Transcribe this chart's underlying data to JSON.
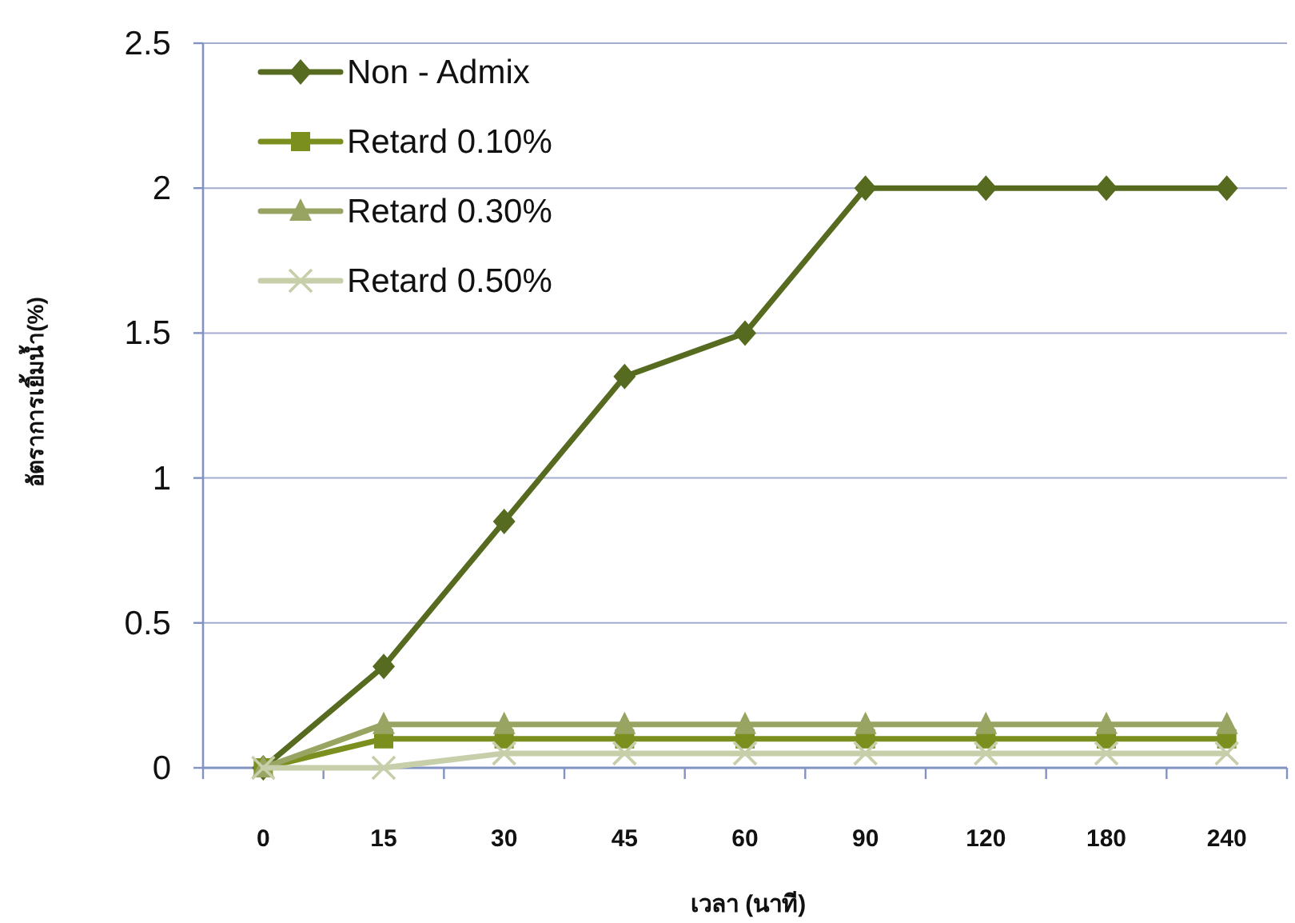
{
  "chart_data": {
    "type": "line",
    "xlabel": "เวลา (นาที)",
    "ylabel": "อัตราการเยิ้มน้ำ(%)",
    "categories": [
      "0",
      "15",
      "30",
      "45",
      "60",
      "90",
      "120",
      "180",
      "240"
    ],
    "series": [
      {
        "name": "Non - Admix",
        "color": "#566b1f",
        "marker": "diamond",
        "values": [
          0,
          0.35,
          0.85,
          1.35,
          1.5,
          2,
          2,
          2,
          2
        ]
      },
      {
        "name": "Retard 0.10%",
        "color": "#7b8f1f",
        "marker": "square",
        "values": [
          0,
          0.1,
          0.1,
          0.1,
          0.1,
          0.1,
          0.1,
          0.1,
          0.1
        ]
      },
      {
        "name": "Retard 0.30%",
        "color": "#98a562",
        "marker": "triangle",
        "values": [
          0,
          0.15,
          0.15,
          0.15,
          0.15,
          0.15,
          0.15,
          0.15,
          0.15
        ]
      },
      {
        "name": "Retard 0.50%",
        "color": "#c6ceaa",
        "marker": "cross",
        "values": [
          0,
          0,
          0.05,
          0.05,
          0.05,
          0.05,
          0.05,
          0.05,
          0.05
        ]
      }
    ],
    "ylim": [
      0,
      2.5
    ],
    "yticks": [
      0,
      0.5,
      1,
      1.5,
      2,
      2.5
    ],
    "grid": "y",
    "legend": "top left"
  }
}
